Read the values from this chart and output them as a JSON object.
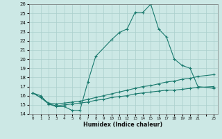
{
  "xlabel": "Humidex (Indice chaleur)",
  "bg_color": "#cce8e5",
  "grid_color": "#aacfcc",
  "line_color": "#1a7a6e",
  "xlim": [
    -0.5,
    23.5
  ],
  "ylim": [
    14,
    26
  ],
  "xticks": [
    0,
    1,
    2,
    3,
    4,
    5,
    6,
    7,
    8,
    9,
    10,
    11,
    12,
    13,
    14,
    15,
    16,
    17,
    18,
    19,
    20,
    21,
    22,
    23
  ],
  "yticks": [
    14,
    15,
    16,
    17,
    18,
    19,
    20,
    21,
    22,
    23,
    24,
    25,
    26
  ],
  "xtick_labels": [
    "0",
    "1",
    "2",
    "3",
    "4",
    "5",
    "6",
    "7",
    "8",
    "9",
    "10",
    "11",
    "12",
    "13",
    "14",
    "15",
    "16",
    "17",
    "18",
    "19",
    "20",
    "21",
    "",
    "23"
  ],
  "lines": [
    {
      "x": [
        0,
        1,
        2,
        3,
        4,
        5,
        6,
        7,
        8,
        10,
        11,
        12,
        13,
        14,
        15,
        16,
        17,
        18,
        19,
        20,
        21,
        23
      ],
      "y": [
        16.3,
        16.0,
        15.1,
        14.8,
        14.8,
        14.4,
        14.4,
        17.5,
        20.3,
        22.1,
        22.9,
        23.3,
        25.1,
        25.1,
        26.0,
        23.3,
        22.4,
        20.0,
        19.3,
        19.0,
        17.0,
        16.8
      ]
    },
    {
      "x": [
        0,
        1,
        2,
        3,
        4,
        5,
        6,
        7,
        8,
        9,
        10,
        11,
        12,
        13,
        14,
        15,
        16,
        17,
        18,
        19,
        20,
        21,
        23
      ],
      "y": [
        16.3,
        15.8,
        15.2,
        15.1,
        15.2,
        15.3,
        15.4,
        15.6,
        15.8,
        16.0,
        16.2,
        16.4,
        16.6,
        16.8,
        17.0,
        17.1,
        17.3,
        17.5,
        17.6,
        17.8,
        17.9,
        18.1,
        18.3
      ]
    },
    {
      "x": [
        0,
        1,
        2,
        3,
        4,
        5,
        6,
        7,
        8,
        9,
        10,
        11,
        12,
        13,
        14,
        15,
        16,
        17,
        18,
        19,
        20,
        21,
        23
      ],
      "y": [
        16.3,
        15.8,
        15.1,
        14.9,
        15.0,
        15.1,
        15.2,
        15.3,
        15.5,
        15.6,
        15.8,
        15.9,
        16.0,
        16.2,
        16.3,
        16.4,
        16.5,
        16.6,
        16.6,
        16.7,
        16.8,
        16.9,
        17.0
      ]
    }
  ]
}
